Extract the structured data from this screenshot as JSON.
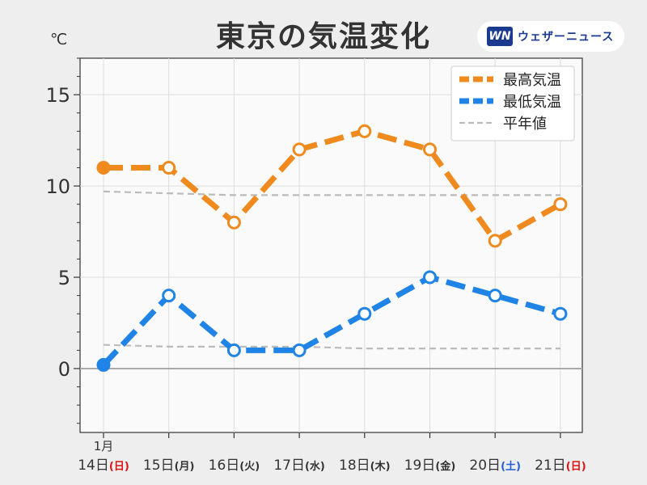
{
  "header": {
    "title": "東京の気温変化",
    "unit": "℃",
    "brand_logo": "WN",
    "brand_name": "ウェザーニュース"
  },
  "chart_data": {
    "type": "line",
    "title": "東京の気温変化",
    "ylabel": "℃",
    "ylim": [
      -3.5,
      17
    ],
    "yticks": [
      0,
      5,
      10,
      15
    ],
    "grid": true,
    "legend_position": "top-right",
    "month_label": "1月",
    "categories": [
      {
        "day": "14日",
        "weekday": "(日)",
        "color": "#dd1111"
      },
      {
        "day": "15日",
        "weekday": "(月)",
        "color": "#333333"
      },
      {
        "day": "16日",
        "weekday": "(火)",
        "color": "#333333"
      },
      {
        "day": "17日",
        "weekday": "(水)",
        "color": "#333333"
      },
      {
        "day": "18日",
        "weekday": "(木)",
        "color": "#333333"
      },
      {
        "day": "19日",
        "weekday": "(金)",
        "color": "#333333"
      },
      {
        "day": "20日",
        "weekday": "(土)",
        "color": "#1e5fd6"
      },
      {
        "day": "21日",
        "weekday": "(日)",
        "color": "#dd1111"
      }
    ],
    "series": [
      {
        "name": "最高気温",
        "color": "#ef8a1e",
        "values": [
          11,
          11,
          8,
          12,
          13,
          12,
          7,
          9
        ],
        "filled_first": true
      },
      {
        "name": "最低気温",
        "color": "#1f84e6",
        "values": [
          0.2,
          4,
          1,
          1,
          3,
          5,
          4,
          3
        ],
        "filled_first": true
      }
    ],
    "normals": {
      "name": "平年値",
      "color": "#bbbbbb",
      "high": [
        9.7,
        9.6,
        9.5,
        9.5,
        9.5,
        9.5,
        9.5,
        9.5
      ],
      "low": [
        1.3,
        1.2,
        1.2,
        1.2,
        1.1,
        1.1,
        1.1,
        1.1
      ]
    }
  }
}
